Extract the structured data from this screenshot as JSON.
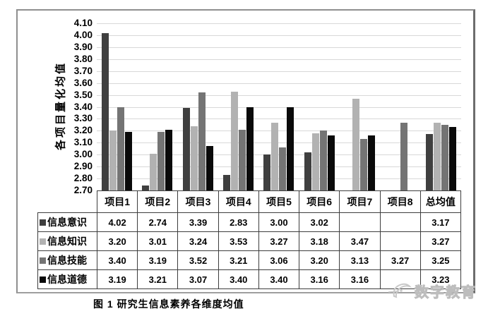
{
  "figure": {
    "caption": "图 1  研究生信息素养各维度均值"
  },
  "watermark": {
    "text": "数字教育"
  },
  "chart_data": {
    "type": "bar",
    "title": "研究生信息素养各维度均值",
    "xlabel": "",
    "ylabel": "各项目量化均值",
    "categories": [
      "项目1",
      "项目2",
      "项目3",
      "项目4",
      "项目5",
      "项目6",
      "项目7",
      "项目8",
      "总均值"
    ],
    "series": [
      {
        "name": "信息意识",
        "color": "#3f3f3f",
        "values": [
          4.02,
          2.74,
          3.39,
          2.83,
          3.0,
          3.02,
          null,
          null,
          3.17
        ]
      },
      {
        "name": "信息知识",
        "color": "#b2b2b2",
        "values": [
          3.2,
          3.01,
          3.24,
          3.53,
          3.27,
          3.18,
          3.47,
          null,
          3.27
        ]
      },
      {
        "name": "信息技能",
        "color": "#747474",
        "values": [
          3.4,
          3.19,
          3.52,
          3.21,
          3.06,
          3.2,
          3.13,
          3.27,
          3.25
        ]
      },
      {
        "name": "信息道德",
        "color": "#0a0a0a",
        "values": [
          3.19,
          3.21,
          3.07,
          3.4,
          3.4,
          3.16,
          3.16,
          null,
          3.23
        ]
      }
    ],
    "ylim": [
      2.7,
      4.1
    ],
    "ytick_step": 0.1,
    "yticks": [
      "4.10",
      "4.00",
      "3.90",
      "3.80",
      "3.70",
      "3.60",
      "3.50",
      "3.40",
      "3.30",
      "3.20",
      "3.10",
      "3.00",
      "2.90",
      "2.80",
      "2.70"
    ],
    "grid": true,
    "legend_position": "table-left",
    "value_format": "0.00"
  },
  "colors": {
    "gridline": "#d8d8d8",
    "table_border": "#3d3d3d",
    "frame_border": "#8f8f8f",
    "watermark_gray": "#c9c9c9"
  }
}
